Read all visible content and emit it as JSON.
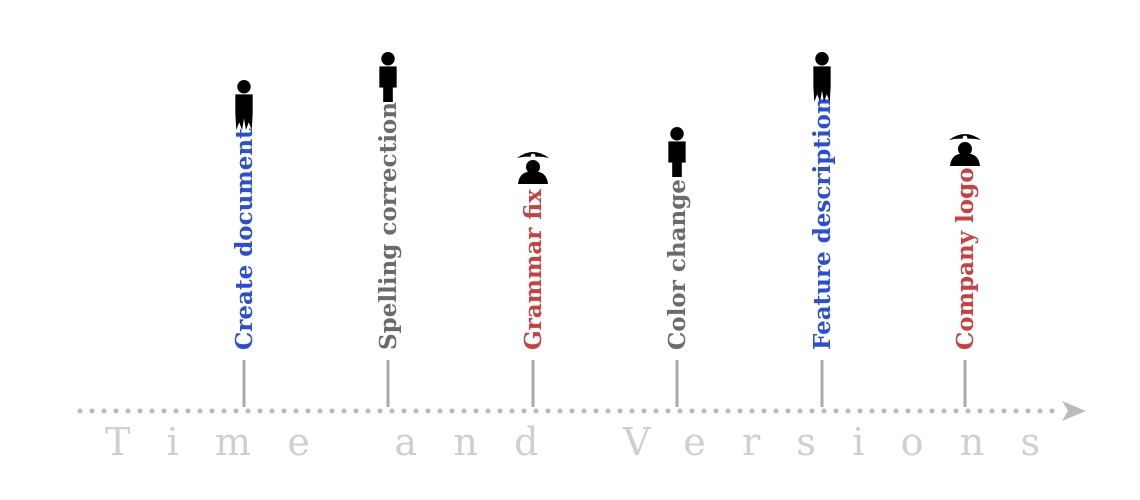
{
  "axis": {
    "caption": "Time and Versions",
    "color": "#bbbbbb",
    "caption_color": "#cfcfcf"
  },
  "author_colors": {
    "blue": "#2a4fd6",
    "gray": "#6b6b6b",
    "red": "#c9403e"
  },
  "events": [
    {
      "label": "Create document",
      "author_icon": "person-icon",
      "color_key": "blue"
    },
    {
      "label": "Spelling correction",
      "author_icon": "person-icon",
      "color_key": "gray"
    },
    {
      "label": "Grammar fix",
      "author_icon": "pirate-icon",
      "color_key": "red"
    },
    {
      "label": "Color change",
      "author_icon": "person-icon",
      "color_key": "gray"
    },
    {
      "label": "Feature description",
      "author_icon": "person-icon",
      "color_key": "blue"
    },
    {
      "label": "Company logo",
      "author_icon": "pirate-icon",
      "color_key": "red"
    }
  ]
}
